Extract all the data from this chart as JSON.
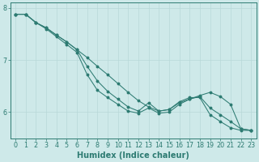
{
  "xlabel": "Humidex (Indice chaleur)",
  "background_color": "#cee9e9",
  "line_color": "#2d7b72",
  "grid_color": "#b8d8d8",
  "x_values": [
    0,
    1,
    2,
    3,
    4,
    5,
    6,
    7,
    8,
    9,
    10,
    11,
    12,
    13,
    14,
    15,
    16,
    17,
    18,
    19,
    20,
    21,
    22,
    23
  ],
  "line1_y": [
    7.88,
    7.88,
    7.72,
    7.62,
    7.48,
    7.35,
    7.2,
    7.05,
    6.88,
    6.72,
    6.55,
    6.38,
    6.22,
    6.1,
    6.02,
    6.05,
    6.18,
    6.25,
    6.3,
    6.08,
    5.95,
    5.82,
    5.68,
    5.65
  ],
  "line2_y": [
    7.88,
    7.88,
    7.72,
    7.62,
    7.48,
    7.35,
    7.2,
    6.88,
    6.6,
    6.4,
    6.25,
    6.1,
    6.02,
    6.18,
    6.02,
    6.05,
    6.2,
    6.28,
    6.28,
    5.95,
    5.82,
    5.7,
    5.65,
    5.65
  ],
  "line3_y": [
    7.88,
    7.88,
    7.72,
    7.6,
    7.45,
    7.3,
    7.15,
    6.72,
    6.42,
    6.28,
    6.15,
    6.02,
    5.98,
    6.08,
    5.98,
    6.0,
    6.15,
    6.25,
    6.32,
    6.38,
    6.3,
    6.15,
    5.68,
    5.65
  ],
  "ylim": [
    5.5,
    8.1
  ],
  "xlim": [
    -0.5,
    23.5
  ],
  "yticks": [
    6,
    7,
    8
  ],
  "xticks": [
    0,
    1,
    2,
    3,
    4,
    5,
    6,
    7,
    8,
    9,
    10,
    11,
    12,
    13,
    14,
    15,
    16,
    17,
    18,
    19,
    20,
    21,
    22,
    23
  ],
  "xlabel_fontsize": 7.0,
  "tick_fontsize": 5.8,
  "marker_size": 1.8,
  "linewidth": 0.75
}
